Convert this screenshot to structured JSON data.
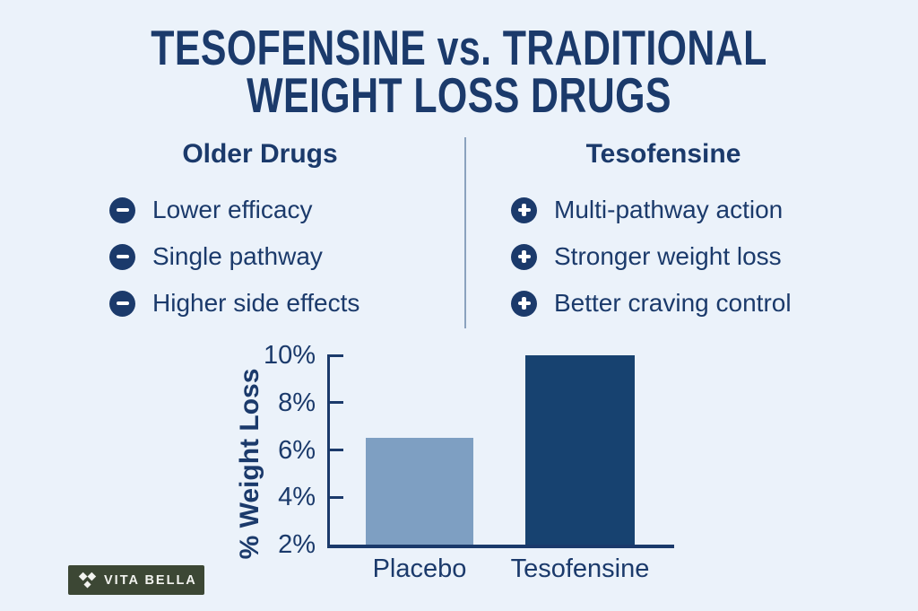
{
  "background_color": "#ebf2fa",
  "accent_navy": "#1b3a6b",
  "title": {
    "line1": "TESOFENSINE vs. TRADITIONAL",
    "line2": "WEIGHT LOSS DRUGS"
  },
  "comparison": {
    "left": {
      "heading": "Older Drugs",
      "bullet_icon": "minus-icon",
      "items": [
        "Lower efficacy",
        "Single pathway",
        "Higher side effects"
      ]
    },
    "right": {
      "heading": "Tesofensine",
      "bullet_icon": "plus-icon",
      "items": [
        "Multi-pathway action",
        "Stronger weight loss",
        "Better craving control"
      ]
    }
  },
  "chart_data": {
    "type": "bar",
    "categories": [
      "Placebo",
      "Tesofensine"
    ],
    "values": [
      6.5,
      10
    ],
    "unit": "%",
    "title": "",
    "xlabel": "",
    "ylabel": "% Weight Loss",
    "ylim": [
      2,
      10
    ],
    "ytick_values": [
      2,
      4,
      6,
      8,
      10
    ],
    "ytick_labels": [
      "2%",
      "4%",
      "6%",
      "8%",
      "10%"
    ],
    "bar_colors": [
      "#7e9fc2",
      "#174270"
    ],
    "axis_color": "#1b3a6b",
    "grid": false,
    "legend": false
  },
  "footer": {
    "brand": "VITA BELLA",
    "badge_color": "#3c4734",
    "logo_icon": "vita-bella-diamonds-icon"
  }
}
